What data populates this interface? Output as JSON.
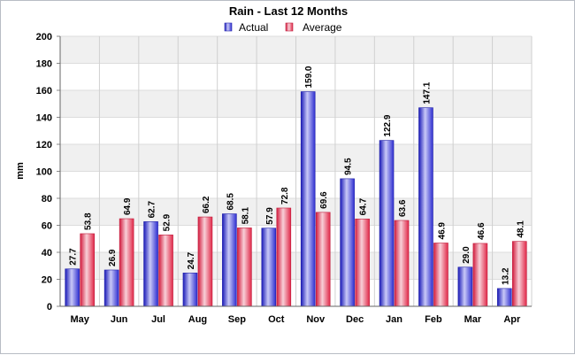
{
  "chart_data": {
    "type": "bar",
    "title": "Rain - Last 12 Months",
    "ylabel": "mm",
    "xlabel": "",
    "ylim": [
      0,
      200
    ],
    "yticks": [
      0,
      20,
      40,
      60,
      80,
      100,
      120,
      140,
      160,
      180,
      200
    ],
    "categories": [
      "May",
      "Jun",
      "Jul",
      "Aug",
      "Sep",
      "Oct",
      "Nov",
      "Dec",
      "Jan",
      "Feb",
      "Mar",
      "Apr"
    ],
    "series": [
      {
        "name": "Actual",
        "color": "#3a3adc",
        "values": [
          27.7,
          26.9,
          62.7,
          24.7,
          68.5,
          57.9,
          159.0,
          94.5,
          122.9,
          147.1,
          29.0,
          13.2
        ]
      },
      {
        "name": "Average",
        "color": "#e83a5a",
        "values": [
          53.8,
          64.9,
          52.9,
          66.2,
          58.1,
          72.8,
          69.6,
          64.7,
          63.6,
          46.9,
          46.6,
          48.1
        ]
      }
    ],
    "legend": "top-center",
    "grid": true,
    "background_bands": true
  }
}
